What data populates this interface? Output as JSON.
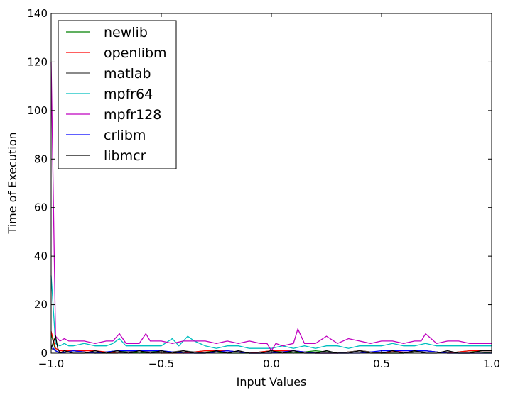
{
  "chart_data": {
    "type": "line",
    "xlabel": "Input Values",
    "ylabel": "Time of Execution",
    "xlim": [
      -1.0,
      1.0
    ],
    "ylim": [
      0,
      140
    ],
    "xticks": [
      "−1.0",
      "−0.5",
      "0.0",
      "0.5",
      "1.0"
    ],
    "xtick_values": [
      -1.0,
      -0.5,
      0.0,
      0.5,
      1.0
    ],
    "yticks": [
      "0",
      "20",
      "40",
      "60",
      "80",
      "100",
      "120",
      "140"
    ],
    "ytick_values": [
      0,
      20,
      40,
      60,
      80,
      100,
      120,
      140
    ],
    "grid": false,
    "legend_position": "top-left",
    "series": [
      {
        "name": "newlib",
        "color": "#008000",
        "x": [
          -1.0,
          -0.98,
          -0.96,
          -0.9,
          -0.8,
          -0.7,
          -0.6,
          -0.5,
          -0.4,
          -0.3,
          -0.2,
          -0.1,
          0.0,
          0.1,
          0.2,
          0.3,
          0.4,
          0.5,
          0.6,
          0.7,
          0.8,
          0.9,
          1.0
        ],
        "y": [
          8,
          1,
          0,
          1,
          0,
          1,
          0,
          1,
          0,
          1,
          0,
          0,
          1,
          0,
          1,
          0,
          1,
          0,
          0,
          1,
          0,
          1,
          0
        ]
      },
      {
        "name": "openlibm",
        "color": "#ff0000",
        "x": [
          -1.0,
          -0.98,
          -0.96,
          -0.9,
          -0.8,
          -0.7,
          -0.6,
          -0.5,
          -0.4,
          -0.3,
          -0.2,
          -0.1,
          0.0,
          0.1,
          0.2,
          0.3,
          0.4,
          0.5,
          0.6,
          0.7,
          0.8,
          0.9,
          1.0
        ],
        "y": [
          9,
          2,
          1,
          1,
          1,
          0,
          1,
          0,
          0,
          1,
          1,
          0,
          1,
          1,
          0,
          0,
          1,
          0,
          1,
          1,
          0,
          1,
          1
        ]
      },
      {
        "name": "matlab",
        "color": "#444444",
        "x": [
          -1.0,
          -0.98,
          -0.96,
          -0.9,
          -0.8,
          -0.7,
          -0.6,
          -0.5,
          -0.4,
          -0.3,
          -0.2,
          -0.1,
          0.0,
          0.1,
          0.2,
          0.3,
          0.4,
          0.5,
          0.6,
          0.7,
          0.8,
          0.9,
          1.0
        ],
        "y": [
          2,
          1,
          0,
          1,
          0,
          0,
          1,
          0,
          1,
          0,
          1,
          0,
          0,
          1,
          0,
          0,
          1,
          0,
          0,
          1,
          0,
          0,
          0
        ]
      },
      {
        "name": "mpfr64",
        "color": "#00bfbf",
        "x": [
          -1.0,
          -0.98,
          -0.96,
          -0.94,
          -0.92,
          -0.9,
          -0.85,
          -0.8,
          -0.75,
          -0.72,
          -0.69,
          -0.66,
          -0.6,
          -0.55,
          -0.5,
          -0.45,
          -0.42,
          -0.38,
          -0.35,
          -0.3,
          -0.25,
          -0.2,
          -0.15,
          -0.1,
          -0.05,
          0.0,
          0.05,
          0.1,
          0.15,
          0.2,
          0.25,
          0.3,
          0.35,
          0.4,
          0.45,
          0.5,
          0.55,
          0.6,
          0.65,
          0.7,
          0.75,
          0.8,
          0.85,
          0.9,
          0.95,
          1.0
        ],
        "y": [
          32,
          4,
          3,
          4,
          3,
          3,
          4,
          3,
          3,
          4,
          6,
          3,
          3,
          3,
          3,
          6,
          3,
          7,
          5,
          3,
          2,
          3,
          3,
          2,
          2,
          2,
          3,
          2,
          3,
          2,
          3,
          3,
          2,
          3,
          3,
          3,
          4,
          3,
          3,
          4,
          3,
          3,
          3,
          3,
          3,
          3
        ]
      },
      {
        "name": "mpfr128",
        "color": "#bf00bf",
        "x": [
          -1.0,
          -0.98,
          -0.96,
          -0.94,
          -0.92,
          -0.9,
          -0.85,
          -0.8,
          -0.75,
          -0.72,
          -0.69,
          -0.66,
          -0.6,
          -0.57,
          -0.55,
          -0.5,
          -0.45,
          -0.4,
          -0.35,
          -0.3,
          -0.25,
          -0.2,
          -0.15,
          -0.1,
          -0.05,
          -0.02,
          0.0,
          0.02,
          0.05,
          0.1,
          0.12,
          0.15,
          0.2,
          0.25,
          0.3,
          0.35,
          0.4,
          0.45,
          0.5,
          0.55,
          0.6,
          0.65,
          0.68,
          0.7,
          0.75,
          0.8,
          0.85,
          0.9,
          0.95,
          1.0
        ],
        "y": [
          120,
          7,
          5,
          6,
          5,
          5,
          5,
          4,
          5,
          5,
          8,
          4,
          4,
          8,
          5,
          5,
          4,
          5,
          5,
          5,
          4,
          5,
          4,
          5,
          4,
          4,
          1,
          4,
          3,
          4,
          10,
          4,
          4,
          7,
          4,
          6,
          5,
          4,
          5,
          5,
          4,
          5,
          5,
          8,
          4,
          5,
          5,
          4,
          4,
          4
        ]
      },
      {
        "name": "crlibm",
        "color": "#0000ff",
        "x": [
          -1.0,
          -0.98,
          -0.96,
          -0.9,
          -0.8,
          -0.7,
          -0.6,
          -0.5,
          -0.4,
          -0.3,
          -0.2,
          -0.1,
          0.0,
          0.1,
          0.2,
          0.3,
          0.4,
          0.5,
          0.6,
          0.7,
          0.8,
          0.9,
          1.0
        ],
        "y": [
          3,
          1,
          0,
          1,
          0,
          1,
          1,
          1,
          0,
          0,
          1,
          0,
          0,
          1,
          0,
          0,
          0,
          1,
          1,
          1,
          0,
          0,
          0
        ]
      },
      {
        "name": "libmcr",
        "color": "#000000",
        "x": [
          -1.0,
          -0.98,
          -0.97,
          -0.96,
          -0.94,
          -0.9,
          -0.85,
          -0.8,
          -0.75,
          -0.7,
          -0.65,
          -0.6,
          -0.55,
          -0.5,
          -0.45,
          -0.4,
          -0.35,
          -0.3,
          -0.25,
          -0.2,
          -0.15,
          -0.1,
          -0.05,
          0.0,
          0.05,
          0.1,
          0.15,
          0.2,
          0.25,
          0.3,
          0.35,
          0.4,
          0.45,
          0.5,
          0.55,
          0.6,
          0.65,
          0.7,
          0.75,
          0.8,
          0.85,
          0.9,
          0.95,
          1.0
        ],
        "y": [
          2,
          7,
          2,
          0,
          1,
          0,
          0,
          1,
          0,
          1,
          0,
          1,
          0,
          1,
          0,
          1,
          0,
          0,
          1,
          0,
          1,
          0,
          0,
          1,
          0,
          1,
          0,
          0,
          1,
          0,
          0,
          1,
          0,
          0,
          1,
          0,
          1,
          0,
          0,
          1,
          0,
          0,
          1,
          1
        ]
      }
    ]
  }
}
